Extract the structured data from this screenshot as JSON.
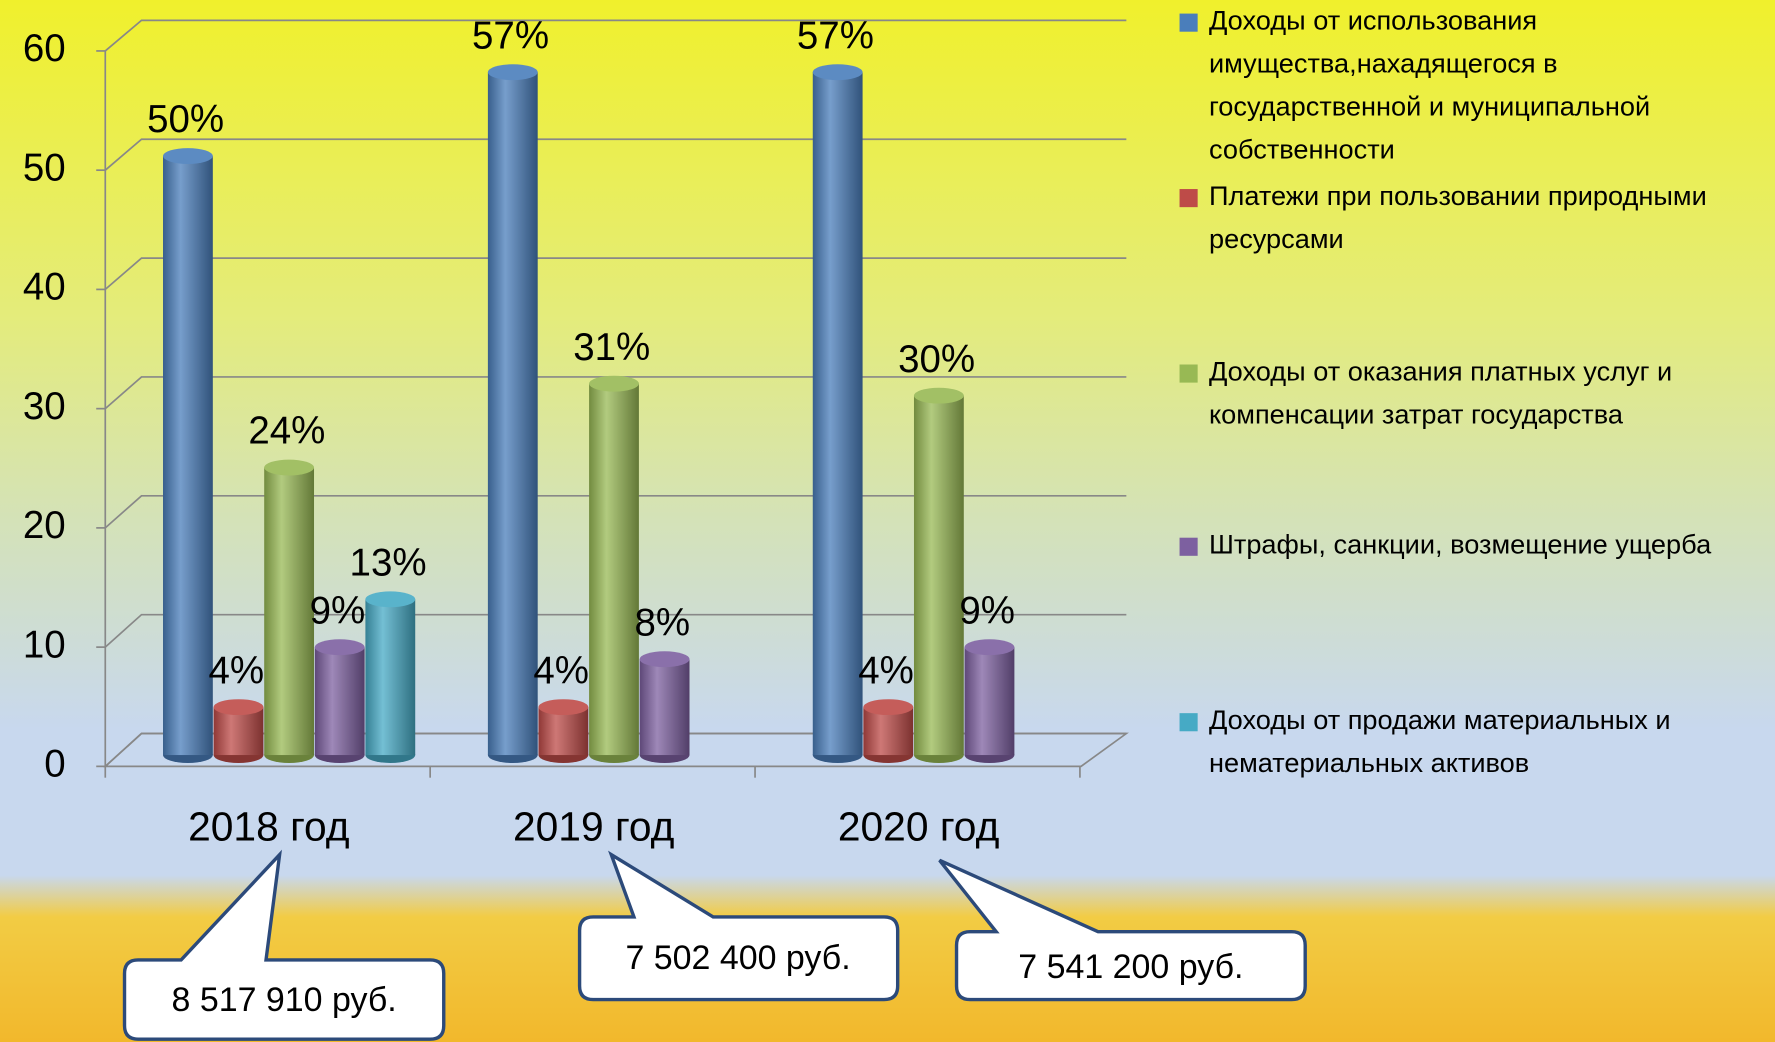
{
  "chart_data": {
    "type": "bar3d",
    "categories": [
      "2018 год",
      "2019 год",
      "2020 год"
    ],
    "series": [
      {
        "name": "Доходы от использования имущества,нахадящегося в государственной и муниципальной собственности",
        "color": "#4a7ebb",
        "values": [
          50,
          57,
          57
        ],
        "value_labels": [
          "50%",
          "57%",
          "57%"
        ]
      },
      {
        "name": "Платежи при пользовании природными ресурсами",
        "color": "#be4b48",
        "values": [
          4,
          4,
          4
        ],
        "value_labels": [
          "4%",
          "4%",
          "4%"
        ]
      },
      {
        "name": "Доходы от оказания платных услуг и компенсации затрат государства",
        "color": "#98b954",
        "values": [
          24,
          31,
          30
        ],
        "value_labels": [
          "24%",
          "31%",
          "30%"
        ]
      },
      {
        "name": "Штрафы, санкции, возмещение ущерба",
        "color": "#7d60a0",
        "values": [
          9,
          8,
          9
        ],
        "value_labels": [
          "9%",
          "8%",
          "9%"
        ]
      },
      {
        "name": "Доходы от продажи материальных и нематериальных активов",
        "color": "#46aac5",
        "values": [
          13,
          null,
          null
        ],
        "value_labels": [
          "13%",
          null,
          null
        ]
      }
    ],
    "ylim": [
      0,
      60
    ],
    "yticks": [
      0,
      10,
      20,
      30,
      40,
      50,
      60
    ],
    "grid": true,
    "annotations": [
      "8 517 910 руб.",
      "7 502 400 руб.",
      "7 541 200 руб."
    ]
  }
}
